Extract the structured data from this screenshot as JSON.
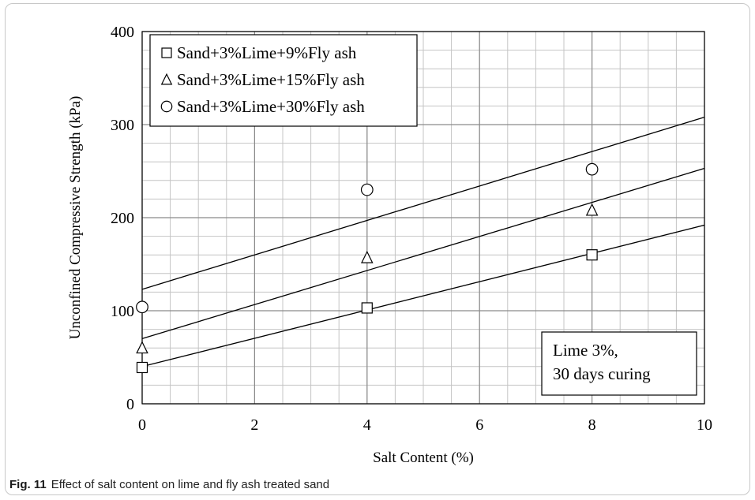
{
  "chart_data": {
    "type": "scatter",
    "xlabel": "Salt Content (%)",
    "ylabel": "Unconfined Compressive Strength (kPa)",
    "xlim": [
      0,
      10
    ],
    "ylim": [
      0,
      400
    ],
    "xticks": [
      "0",
      "2",
      "4",
      "6",
      "8",
      "10"
    ],
    "yticks": [
      "0",
      "100",
      "200",
      "300",
      "400"
    ],
    "grid": true,
    "legend_position": "top-left",
    "series": [
      {
        "name": "Sand+3%Lime+9%Fly ash",
        "marker": "square",
        "x": [
          0,
          4,
          8
        ],
        "y": [
          39,
          103,
          160
        ],
        "trendline": {
          "x": [
            0,
            10
          ],
          "y": [
            40,
            192
          ]
        }
      },
      {
        "name": "Sand+3%Lime+15%Fly ash",
        "marker": "triangle",
        "x": [
          0,
          4,
          8
        ],
        "y": [
          60,
          157,
          208
        ],
        "trendline": {
          "x": [
            0,
            10
          ],
          "y": [
            70,
            253
          ]
        }
      },
      {
        "name": "Sand+3%Lime+30%Fly ash",
        "marker": "circle",
        "x": [
          0,
          4,
          8
        ],
        "y": [
          104,
          230,
          252
        ],
        "trendline": {
          "x": [
            0,
            10
          ],
          "y": [
            123,
            308
          ]
        }
      }
    ],
    "annotation": {
      "lines": [
        "Lime 3%,",
        "30 days curing"
      ]
    }
  },
  "caption": {
    "label": "Fig. 11",
    "text": "Effect of salt content on lime and fly ash treated sand"
  }
}
